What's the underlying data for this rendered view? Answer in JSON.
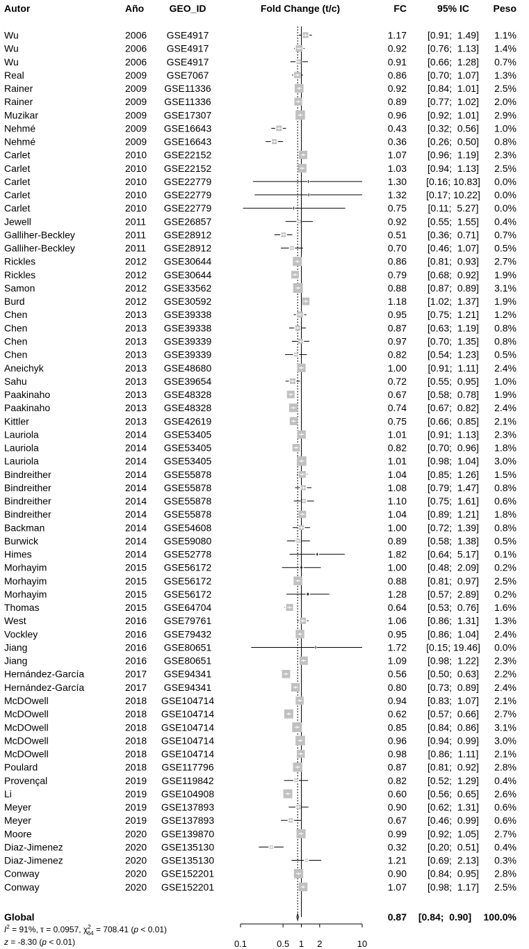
{
  "headers": {
    "author": "Autor",
    "year": "Año",
    "geo": "GEO_ID",
    "fold": "Fold Change (t/c)",
    "fc": "FC",
    "ci": "95% IC",
    "weight": "Peso"
  },
  "chart_data": {
    "type": "forest",
    "xscale": "log",
    "xlim": [
      0.1,
      10
    ],
    "xticks": [
      0.1,
      0.5,
      1,
      2,
      10
    ],
    "xtick_labels": [
      "0.1",
      "0.5",
      "1",
      "2",
      "10"
    ],
    "reference_line": 1,
    "pooled_line": 0.87,
    "studies": [
      {
        "author": "Wu",
        "year": "2006",
        "geo": "GSE4917",
        "fc": 1.17,
        "lo": 0.91,
        "hi": 1.49,
        "fc_text": "1.17",
        "ci_text": "[0.91;  1.49]",
        "w": 1.1,
        "w_text": "1.1%"
      },
      {
        "author": "Wu",
        "year": "2006",
        "geo": "GSE4917",
        "fc": 0.92,
        "lo": 0.76,
        "hi": 1.13,
        "fc_text": "0.92",
        "ci_text": "[0.76;  1.13]",
        "w": 1.4,
        "w_text": "1.4%"
      },
      {
        "author": "Wu",
        "year": "2006",
        "geo": "GSE4917",
        "fc": 0.91,
        "lo": 0.66,
        "hi": 1.28,
        "fc_text": "0.91",
        "ci_text": "[0.66;  1.28]",
        "w": 0.7,
        "w_text": "0.7%"
      },
      {
        "author": "Real",
        "year": "2009",
        "geo": "GSE7067",
        "fc": 0.86,
        "lo": 0.7,
        "hi": 1.07,
        "fc_text": "0.86",
        "ci_text": "[0.70;  1.07]",
        "w": 1.3,
        "w_text": "1.3%"
      },
      {
        "author": "Rainer",
        "year": "2009",
        "geo": "GSE11336",
        "fc": 0.92,
        "lo": 0.84,
        "hi": 1.01,
        "fc_text": "0.92",
        "ci_text": "[0.84;  1.01]",
        "w": 2.5,
        "w_text": "2.5%"
      },
      {
        "author": "Rainer",
        "year": "2009",
        "geo": "GSE11336",
        "fc": 0.89,
        "lo": 0.77,
        "hi": 1.02,
        "fc_text": "0.89",
        "ci_text": "[0.77;  1.02]",
        "w": 2.0,
        "w_text": "2.0%"
      },
      {
        "author": "Muzikar",
        "year": "2009",
        "geo": "GSE17307",
        "fc": 0.96,
        "lo": 0.92,
        "hi": 1.01,
        "fc_text": "0.96",
        "ci_text": "[0.92;  1.01]",
        "w": 2.9,
        "w_text": "2.9%"
      },
      {
        "author": "Nehmé",
        "year": "2009",
        "geo": "GSE16643",
        "fc": 0.43,
        "lo": 0.32,
        "hi": 0.56,
        "fc_text": "0.43",
        "ci_text": "[0.32;  0.56]",
        "w": 1.0,
        "w_text": "1.0%"
      },
      {
        "author": "Nehmé",
        "year": "2009",
        "geo": "GSE16643",
        "fc": 0.36,
        "lo": 0.26,
        "hi": 0.5,
        "fc_text": "0.36",
        "ci_text": "[0.26;  0.50]",
        "w": 0.8,
        "w_text": "0.8%"
      },
      {
        "author": "Carlet",
        "year": "2010",
        "geo": "GSE22152",
        "fc": 1.07,
        "lo": 0.96,
        "hi": 1.19,
        "fc_text": "1.07",
        "ci_text": "[0.96;  1.19]",
        "w": 2.3,
        "w_text": "2.3%"
      },
      {
        "author": "Carlet",
        "year": "2010",
        "geo": "GSE22152",
        "fc": 1.03,
        "lo": 0.94,
        "hi": 1.13,
        "fc_text": "1.03",
        "ci_text": "[0.94;  1.13]",
        "w": 2.5,
        "w_text": "2.5%"
      },
      {
        "author": "Carlet",
        "year": "2010",
        "geo": "GSE22779",
        "fc": 1.3,
        "lo": 0.16,
        "hi": 10.83,
        "fc_text": "1.30",
        "ci_text": "[0.16; 10.83]",
        "w": 0.0,
        "w_text": "0.0%"
      },
      {
        "author": "Carlet",
        "year": "2010",
        "geo": "GSE22779",
        "fc": 1.32,
        "lo": 0.17,
        "hi": 10.22,
        "fc_text": "1.32",
        "ci_text": "[0.17; 10.22]",
        "w": 0.0,
        "w_text": "0.0%"
      },
      {
        "author": "Carlet",
        "year": "2010",
        "geo": "GSE22779",
        "fc": 0.75,
        "lo": 0.11,
        "hi": 5.27,
        "fc_text": "0.75",
        "ci_text": "[0.11;  5.27]",
        "w": 0.0,
        "w_text": "0.0%"
      },
      {
        "author": "Jewell",
        "year": "2011",
        "geo": "GSE26857",
        "fc": 0.92,
        "lo": 0.55,
        "hi": 1.55,
        "fc_text": "0.92",
        "ci_text": "[0.55;  1.55]",
        "w": 0.4,
        "w_text": "0.4%"
      },
      {
        "author": "Galliher-Beckley",
        "year": "2011",
        "geo": "GSE28912",
        "fc": 0.51,
        "lo": 0.36,
        "hi": 0.71,
        "fc_text": "0.51",
        "ci_text": "[0.36;  0.71]",
        "w": 0.7,
        "w_text": "0.7%"
      },
      {
        "author": "Galliher-Beckley",
        "year": "2011",
        "geo": "GSE28912",
        "fc": 0.7,
        "lo": 0.46,
        "hi": 1.07,
        "fc_text": "0.70",
        "ci_text": "[0.46;  1.07]",
        "w": 0.5,
        "w_text": "0.5%"
      },
      {
        "author": "Rickles",
        "year": "2012",
        "geo": "GSE30644",
        "fc": 0.86,
        "lo": 0.81,
        "hi": 0.93,
        "fc_text": "0.86",
        "ci_text": "[0.81;  0.93]",
        "w": 2.7,
        "w_text": "2.7%"
      },
      {
        "author": "Rickles",
        "year": "2012",
        "geo": "GSE30644",
        "fc": 0.79,
        "lo": 0.68,
        "hi": 0.92,
        "fc_text": "0.79",
        "ci_text": "[0.68;  0.92]",
        "w": 1.9,
        "w_text": "1.9%"
      },
      {
        "author": "Samon",
        "year": "2012",
        "geo": "GSE33562",
        "fc": 0.88,
        "lo": 0.87,
        "hi": 0.89,
        "fc_text": "0.88",
        "ci_text": "[0.87;  0.89]",
        "w": 3.1,
        "w_text": "3.1%"
      },
      {
        "author": "Burd",
        "year": "2012",
        "geo": "GSE30592",
        "fc": 1.18,
        "lo": 1.02,
        "hi": 1.37,
        "fc_text": "1.18",
        "ci_text": "[1.02;  1.37]",
        "w": 1.9,
        "w_text": "1.9%"
      },
      {
        "author": "Chen",
        "year": "2013",
        "geo": "GSE39338",
        "fc": 0.95,
        "lo": 0.75,
        "hi": 1.21,
        "fc_text": "0.95",
        "ci_text": "[0.75;  1.21]",
        "w": 1.2,
        "w_text": "1.2%"
      },
      {
        "author": "Chen",
        "year": "2013",
        "geo": "GSE39338",
        "fc": 0.87,
        "lo": 0.63,
        "hi": 1.19,
        "fc_text": "0.87",
        "ci_text": "[0.63;  1.19]",
        "w": 0.8,
        "w_text": "0.8%"
      },
      {
        "author": "Chen",
        "year": "2013",
        "geo": "GSE39339",
        "fc": 0.97,
        "lo": 0.7,
        "hi": 1.35,
        "fc_text": "0.97",
        "ci_text": "[0.70;  1.35]",
        "w": 0.8,
        "w_text": "0.8%"
      },
      {
        "author": "Chen",
        "year": "2013",
        "geo": "GSE39339",
        "fc": 0.82,
        "lo": 0.54,
        "hi": 1.23,
        "fc_text": "0.82",
        "ci_text": "[0.54;  1.23]",
        "w": 0.5,
        "w_text": "0.5%"
      },
      {
        "author": "Aneichyk",
        "year": "2013",
        "geo": "GSE48680",
        "fc": 1.0,
        "lo": 0.91,
        "hi": 1.11,
        "fc_text": "1.00",
        "ci_text": "[0.91;  1.11]",
        "w": 2.4,
        "w_text": "2.4%"
      },
      {
        "author": "Sahu",
        "year": "2013",
        "geo": "GSE39654",
        "fc": 0.72,
        "lo": 0.55,
        "hi": 0.95,
        "fc_text": "0.72",
        "ci_text": "[0.55;  0.95]",
        "w": 1.0,
        "w_text": "1.0%"
      },
      {
        "author": "Paakinaho",
        "year": "2013",
        "geo": "GSE48328",
        "fc": 0.67,
        "lo": 0.58,
        "hi": 0.78,
        "fc_text": "0.67",
        "ci_text": "[0.58;  0.78]",
        "w": 1.9,
        "w_text": "1.9%"
      },
      {
        "author": "Paakinaho",
        "year": "2013",
        "geo": "GSE48328",
        "fc": 0.74,
        "lo": 0.67,
        "hi": 0.82,
        "fc_text": "0.74",
        "ci_text": "[0.67;  0.82]",
        "w": 2.4,
        "w_text": "2.4%"
      },
      {
        "author": "Kittler",
        "year": "2013",
        "geo": "GSE42619",
        "fc": 0.75,
        "lo": 0.66,
        "hi": 0.85,
        "fc_text": "0.75",
        "ci_text": "[0.66;  0.85]",
        "w": 2.1,
        "w_text": "2.1%"
      },
      {
        "author": "Lauriola",
        "year": "2014",
        "geo": "GSE53405",
        "fc": 1.01,
        "lo": 0.91,
        "hi": 1.13,
        "fc_text": "1.01",
        "ci_text": "[0.91;  1.13]",
        "w": 2.3,
        "w_text": "2.3%"
      },
      {
        "author": "Lauriola",
        "year": "2014",
        "geo": "GSE53405",
        "fc": 0.82,
        "lo": 0.7,
        "hi": 0.96,
        "fc_text": "0.82",
        "ci_text": "[0.70;  0.96]",
        "w": 1.8,
        "w_text": "1.8%"
      },
      {
        "author": "Lauriola",
        "year": "2014",
        "geo": "GSE53405",
        "fc": 1.01,
        "lo": 0.98,
        "hi": 1.04,
        "fc_text": "1.01",
        "ci_text": "[0.98;  1.04]",
        "w": 3.0,
        "w_text": "3.0%"
      },
      {
        "author": "Bindreither",
        "year": "2014",
        "geo": "GSE55878",
        "fc": 1.04,
        "lo": 0.85,
        "hi": 1.26,
        "fc_text": "1.04",
        "ci_text": "[0.85;  1.26]",
        "w": 1.5,
        "w_text": "1.5%"
      },
      {
        "author": "Bindreither",
        "year": "2014",
        "geo": "GSE55878",
        "fc": 1.08,
        "lo": 0.79,
        "hi": 1.47,
        "fc_text": "1.08",
        "ci_text": "[0.79;  1.47]",
        "w": 0.8,
        "w_text": "0.8%"
      },
      {
        "author": "Bindreither",
        "year": "2014",
        "geo": "GSE55878",
        "fc": 1.1,
        "lo": 0.75,
        "hi": 1.61,
        "fc_text": "1.10",
        "ci_text": "[0.75;  1.61]",
        "w": 0.6,
        "w_text": "0.6%"
      },
      {
        "author": "Bindreither",
        "year": "2014",
        "geo": "GSE55878",
        "fc": 1.04,
        "lo": 0.89,
        "hi": 1.21,
        "fc_text": "1.04",
        "ci_text": "[0.89;  1.21]",
        "w": 1.8,
        "w_text": "1.8%"
      },
      {
        "author": "Backman",
        "year": "2014",
        "geo": "GSE54608",
        "fc": 1.0,
        "lo": 0.72,
        "hi": 1.39,
        "fc_text": "1.00",
        "ci_text": "[0.72;  1.39]",
        "w": 0.8,
        "w_text": "0.8%"
      },
      {
        "author": "Burwick",
        "year": "2014",
        "geo": "GSE59080",
        "fc": 0.89,
        "lo": 0.58,
        "hi": 1.38,
        "fc_text": "0.89",
        "ci_text": "[0.58;  1.38]",
        "w": 0.5,
        "w_text": "0.5%"
      },
      {
        "author": "Himes",
        "year": "2014",
        "geo": "GSE52778",
        "fc": 1.82,
        "lo": 0.64,
        "hi": 5.17,
        "fc_text": "1.82",
        "ci_text": "[0.64;  5.17]",
        "w": 0.1,
        "w_text": "0.1%"
      },
      {
        "author": "Morhayim",
        "year": "2015",
        "geo": "GSE56172",
        "fc": 1.0,
        "lo": 0.48,
        "hi": 2.09,
        "fc_text": "1.00",
        "ci_text": "[0.48;  2.09]",
        "w": 0.2,
        "w_text": "0.2%"
      },
      {
        "author": "Morhayim",
        "year": "2015",
        "geo": "GSE56172",
        "fc": 0.88,
        "lo": 0.81,
        "hi": 0.97,
        "fc_text": "0.88",
        "ci_text": "[0.81;  0.97]",
        "w": 2.5,
        "w_text": "2.5%"
      },
      {
        "author": "Morhayim",
        "year": "2015",
        "geo": "GSE56172",
        "fc": 1.28,
        "lo": 0.57,
        "hi": 2.89,
        "fc_text": "1.28",
        "ci_text": "[0.57;  2.89]",
        "w": 0.2,
        "w_text": "0.2%"
      },
      {
        "author": "Thomas",
        "year": "2015",
        "geo": "GSE64704",
        "fc": 0.64,
        "lo": 0.53,
        "hi": 0.76,
        "fc_text": "0.64",
        "ci_text": "[0.53;  0.76]",
        "w": 1.6,
        "w_text": "1.6%"
      },
      {
        "author": "West",
        "year": "2016",
        "geo": "GSE79761",
        "fc": 1.06,
        "lo": 0.86,
        "hi": 1.31,
        "fc_text": "1.06",
        "ci_text": "[0.86;  1.31]",
        "w": 1.3,
        "w_text": "1.3%"
      },
      {
        "author": "Vockley",
        "year": "2016",
        "geo": "GSE79432",
        "fc": 0.95,
        "lo": 0.86,
        "hi": 1.04,
        "fc_text": "0.95",
        "ci_text": "[0.86;  1.04]",
        "w": 2.4,
        "w_text": "2.4%"
      },
      {
        "author": "Jiang",
        "year": "2016",
        "geo": "GSE80651",
        "fc": 1.72,
        "lo": 0.15,
        "hi": 19.46,
        "fc_text": "1.72",
        "ci_text": "[0.15; 19.46]",
        "w": 0.0,
        "w_text": "0.0%"
      },
      {
        "author": "Jiang",
        "year": "2016",
        "geo": "GSE80651",
        "fc": 1.09,
        "lo": 0.98,
        "hi": 1.22,
        "fc_text": "1.09",
        "ci_text": "[0.98;  1.22]",
        "w": 2.3,
        "w_text": "2.3%"
      },
      {
        "author": "Hernández-García",
        "year": "2017",
        "geo": "GSE94341",
        "fc": 0.56,
        "lo": 0.5,
        "hi": 0.63,
        "fc_text": "0.56",
        "ci_text": "[0.50;  0.63]",
        "w": 2.2,
        "w_text": "2.2%"
      },
      {
        "author": "Hernández-García",
        "year": "2017",
        "geo": "GSE94341",
        "fc": 0.8,
        "lo": 0.73,
        "hi": 0.89,
        "fc_text": "0.80",
        "ci_text": "[0.73;  0.89]",
        "w": 2.4,
        "w_text": "2.4%"
      },
      {
        "author": "McDOwell",
        "year": "2018",
        "geo": "GSE104714",
        "fc": 0.94,
        "lo": 0.83,
        "hi": 1.07,
        "fc_text": "0.94",
        "ci_text": "[0.83;  1.07]",
        "w": 2.1,
        "w_text": "2.1%"
      },
      {
        "author": "McDOwell",
        "year": "2018",
        "geo": "GSE104714",
        "fc": 0.62,
        "lo": 0.57,
        "hi": 0.66,
        "fc_text": "0.62",
        "ci_text": "[0.57;  0.66]",
        "w": 2.7,
        "w_text": "2.7%"
      },
      {
        "author": "McDOwell",
        "year": "2018",
        "geo": "GSE104714",
        "fc": 0.85,
        "lo": 0.84,
        "hi": 0.86,
        "fc_text": "0.85",
        "ci_text": "[0.84;  0.86]",
        "w": 3.1,
        "w_text": "3.1%"
      },
      {
        "author": "McDOwell",
        "year": "2018",
        "geo": "GSE104714",
        "fc": 0.96,
        "lo": 0.94,
        "hi": 0.99,
        "fc_text": "0.96",
        "ci_text": "[0.94;  0.99]",
        "w": 3.0,
        "w_text": "3.0%"
      },
      {
        "author": "McDOwell",
        "year": "2018",
        "geo": "GSE104714",
        "fc": 0.98,
        "lo": 0.86,
        "hi": 1.11,
        "fc_text": "0.98",
        "ci_text": "[0.86;  1.11]",
        "w": 2.1,
        "w_text": "2.1%"
      },
      {
        "author": "Poulard",
        "year": "2018",
        "geo": "GSE117796",
        "fc": 0.87,
        "lo": 0.81,
        "hi": 0.92,
        "fc_text": "0.87",
        "ci_text": "[0.81;  0.92]",
        "w": 2.8,
        "w_text": "2.8%"
      },
      {
        "author": "Provençal",
        "year": "2019",
        "geo": "GSE119842",
        "fc": 0.82,
        "lo": 0.52,
        "hi": 1.29,
        "fc_text": "0.82",
        "ci_text": "[0.52;  1.29]",
        "w": 0.4,
        "w_text": "0.4%"
      },
      {
        "author": "Li",
        "year": "2019",
        "geo": "GSE104908",
        "fc": 0.6,
        "lo": 0.56,
        "hi": 0.65,
        "fc_text": "0.60",
        "ci_text": "[0.56;  0.65]",
        "w": 2.6,
        "w_text": "2.6%"
      },
      {
        "author": "Meyer",
        "year": "2019",
        "geo": "GSE137893",
        "fc": 0.9,
        "lo": 0.62,
        "hi": 1.31,
        "fc_text": "0.90",
        "ci_text": "[0.62;  1.31]",
        "w": 0.6,
        "w_text": "0.6%"
      },
      {
        "author": "Meyer",
        "year": "2019",
        "geo": "GSE137893",
        "fc": 0.67,
        "lo": 0.46,
        "hi": 0.99,
        "fc_text": "0.67",
        "ci_text": "[0.46;  0.99]",
        "w": 0.6,
        "w_text": "0.6%"
      },
      {
        "author": "Moore",
        "year": "2020",
        "geo": "GSE139870",
        "fc": 0.99,
        "lo": 0.92,
        "hi": 1.05,
        "fc_text": "0.99",
        "ci_text": "[0.92;  1.05]",
        "w": 2.7,
        "w_text": "2.7%"
      },
      {
        "author": "Diaz-Jimenez",
        "year": "2020",
        "geo": "GSE135130",
        "fc": 0.32,
        "lo": 0.2,
        "hi": 0.51,
        "fc_text": "0.32",
        "ci_text": "[0.20;  0.51]",
        "w": 0.4,
        "w_text": "0.4%"
      },
      {
        "author": "Diaz-Jimenez",
        "year": "2020",
        "geo": "GSE135130",
        "fc": 1.21,
        "lo": 0.69,
        "hi": 2.13,
        "fc_text": "1.21",
        "ci_text": "[0.69;  2.13]",
        "w": 0.3,
        "w_text": "0.3%"
      },
      {
        "author": "Conway",
        "year": "2020",
        "geo": "GSE152201",
        "fc": 0.9,
        "lo": 0.84,
        "hi": 0.95,
        "fc_text": "0.90",
        "ci_text": "[0.84;  0.95]",
        "w": 2.8,
        "w_text": "2.8%"
      },
      {
        "author": "Conway",
        "year": "2020",
        "geo": "GSE152201",
        "fc": 1.07,
        "lo": 0.98,
        "hi": 1.17,
        "fc_text": "1.07",
        "ci_text": "[0.98;  1.17]",
        "w": 2.5,
        "w_text": "2.5%"
      }
    ],
    "pooled": {
      "label": "Global",
      "fc": 0.87,
      "lo": 0.84,
      "hi": 0.9,
      "fc_text": "0.87",
      "ci_text": "[0.84;  0.90]",
      "w_text": "100.0%"
    },
    "heterogeneity": {
      "i2_label": "I",
      "i2_text": " = 91%, τ = 0.0957, χ",
      "chi_df": "64",
      "chi_text": " = 708.41 (",
      "p_symbol": "p",
      "p_text": " < 0.01)"
    },
    "overall_test": {
      "z_symbol": "z",
      "z_text": " = -8.30 (",
      "p_symbol": "p",
      "p_text": " < 0.01)"
    },
    "colors": {
      "box": "#c0c0c0",
      "line": "#000000",
      "ref_line": "#000000",
      "pooled_line": "#000000"
    }
  }
}
